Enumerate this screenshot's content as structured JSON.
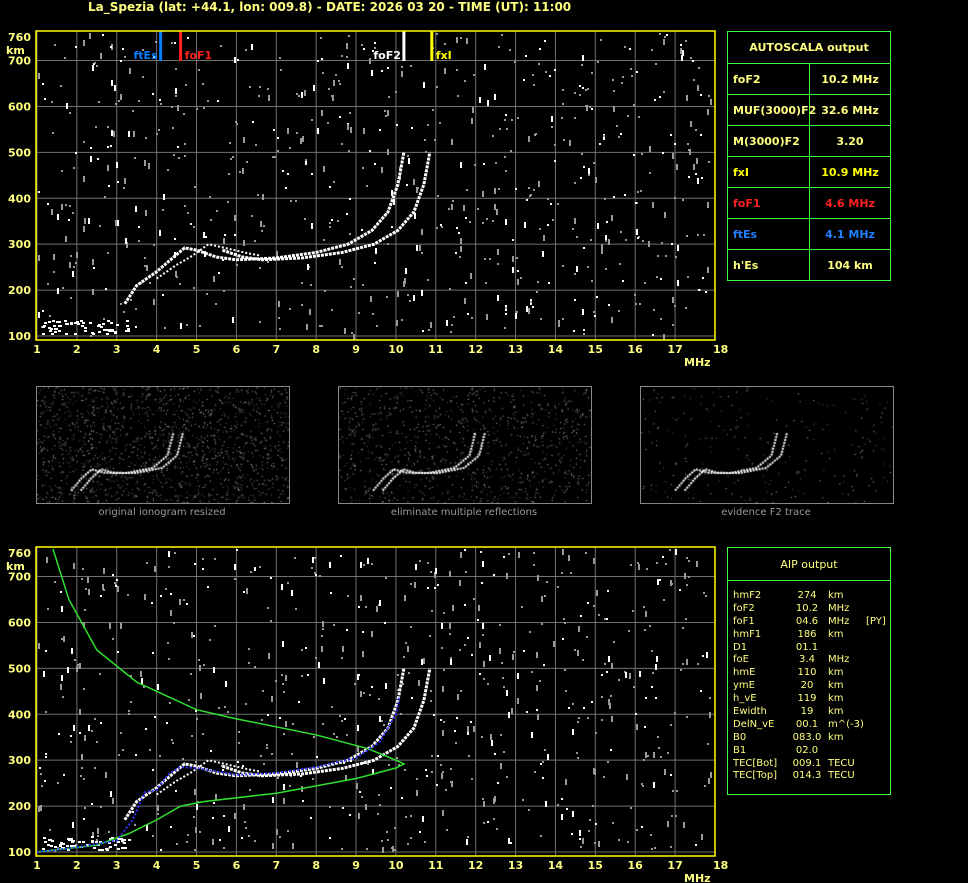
{
  "title": "La_Spezia (lat: +44.1, lon: 009.8) - DATE: 2026 03 20 - TIME (UT): 11:00",
  "axes": {
    "y_unit": "km",
    "x_unit": "MHz",
    "y_ticks": [
      100,
      200,
      300,
      400,
      500,
      600,
      700,
      760
    ],
    "x_ticks": [
      1,
      2,
      3,
      4,
      5,
      6,
      7,
      8,
      9,
      10,
      11,
      12,
      13,
      14,
      15,
      16,
      17,
      18
    ]
  },
  "markers": [
    {
      "label": "ftEs",
      "freq": 4.1,
      "color": "#0080ff"
    },
    {
      "label": "foF1",
      "freq": 4.6,
      "color": "#ff2020"
    },
    {
      "label": "foF2",
      "freq": 10.2,
      "color": "#ffffff"
    },
    {
      "label": "fxI",
      "freq": 10.9,
      "color": "#ffff00"
    }
  ],
  "autoscala": {
    "title": "AUTOSCALA output",
    "rows": [
      {
        "k": "foF2",
        "v": "10.2 MHz",
        "color": "#ffff80"
      },
      {
        "k": "MUF(3000)F2",
        "v": "32.6 MHz",
        "color": "#ffff80"
      },
      {
        "k": "M(3000)F2",
        "v": "3.20",
        "color": "#ffff80"
      },
      {
        "k": "fxI",
        "v": "10.9 MHz",
        "color": "#ffff00"
      },
      {
        "k": "foF1",
        "v": "4.6 MHz",
        "color": "#ff2020"
      },
      {
        "k": "ftEs",
        "v": "4.1 MHz",
        "color": "#2080ff"
      },
      {
        "k": "h'Es",
        "v": "104    km",
        "color": "#ffff80"
      }
    ]
  },
  "thumbnails": [
    "original ionogram resized",
    "eliminate multiple reflections",
    "evidence F2 trace"
  ],
  "aip": {
    "title": "AIP output",
    "rows": [
      [
        "hmF2",
        "274",
        "km",
        ""
      ],
      [
        "foF2",
        "10.2",
        "MHz",
        ""
      ],
      [
        "foF1",
        "04.6",
        "MHz",
        "[PY]"
      ],
      [
        "hmF1",
        "186",
        "km",
        ""
      ],
      [
        "D1",
        "01.1",
        "",
        ""
      ],
      [
        "foE",
        "3.4",
        "MHz",
        ""
      ],
      [
        "hmE",
        "110",
        "km",
        ""
      ],
      [
        "ymE",
        "20",
        "km",
        ""
      ],
      [
        "h_vE",
        "119",
        "km",
        ""
      ],
      [
        "Ewidth",
        "19",
        "km",
        ""
      ],
      [
        "DelN_vE",
        "00.1",
        "m^(-3)",
        ""
      ],
      [
        "B0",
        "083.0",
        "km",
        ""
      ],
      [
        "B1",
        "02.0",
        "",
        ""
      ],
      [
        "TEC[Bot]",
        "009.1",
        "TECU",
        ""
      ],
      [
        "TEC[Top]",
        "014.3",
        "TECU",
        ""
      ]
    ]
  }
}
